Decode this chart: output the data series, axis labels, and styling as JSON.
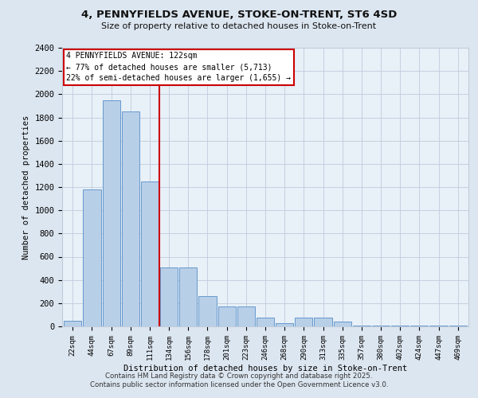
{
  "title1": "4, PENNYFIELDS AVENUE, STOKE-ON-TRENT, ST6 4SD",
  "title2": "Size of property relative to detached houses in Stoke-on-Trent",
  "xlabel": "Distribution of detached houses by size in Stoke-on-Trent",
  "ylabel": "Number of detached properties",
  "bin_labels": [
    "22sqm",
    "44sqm",
    "67sqm",
    "89sqm",
    "111sqm",
    "134sqm",
    "156sqm",
    "178sqm",
    "201sqm",
    "223sqm",
    "246sqm",
    "268sqm",
    "290sqm",
    "313sqm",
    "335sqm",
    "357sqm",
    "380sqm",
    "402sqm",
    "424sqm",
    "447sqm",
    "469sqm"
  ],
  "bar_heights": [
    50,
    1180,
    1950,
    1850,
    1250,
    510,
    510,
    260,
    170,
    170,
    75,
    25,
    75,
    75,
    40,
    10,
    10,
    10,
    10,
    5,
    5
  ],
  "bar_color": "#b8cfe8",
  "bar_edgecolor": "#6699cc",
  "vline_color": "#cc0000",
  "vline_position": 4.5,
  "annotation_title": "4 PENNYFIELDS AVENUE: 122sqm",
  "annotation_line1": "← 77% of detached houses are smaller (5,713)",
  "annotation_line2": "22% of semi-detached houses are larger (1,655) →",
  "annotation_box_color": "#cc0000",
  "ylim": [
    0,
    2400
  ],
  "yticks": [
    0,
    200,
    400,
    600,
    800,
    1000,
    1200,
    1400,
    1600,
    1800,
    2000,
    2200,
    2400
  ],
  "footer1": "Contains HM Land Registry data © Crown copyright and database right 2025.",
  "footer2": "Contains public sector information licensed under the Open Government Licence v3.0.",
  "bg_color": "#dce6f0",
  "plot_bg_color": "#e8f0f8",
  "grid_color": "#c0ccdc"
}
